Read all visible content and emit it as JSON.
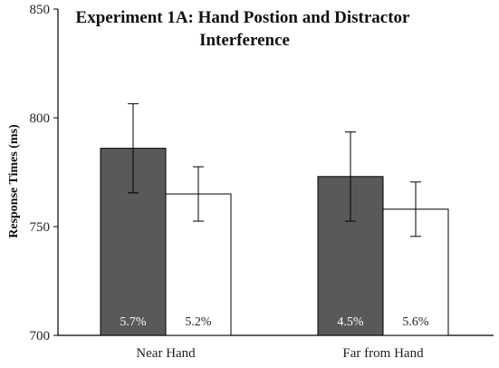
{
  "chart_data": {
    "type": "bar",
    "title_line1": "Experiment 1A: Hand Postion and Distractor",
    "title_line2": "Interference",
    "xlabel": "",
    "ylabel": "Response Times (ms)",
    "ylim": [
      700,
      850
    ],
    "yticks": [
      "700",
      "750",
      "800",
      "850"
    ],
    "categories": [
      "Near Hand",
      "Far from Hand"
    ],
    "grid": false,
    "series": [
      {
        "color": "#595959",
        "label_color": "#ffffff",
        "values": [
          786,
          773
        ],
        "errors": [
          20.5,
          20.5
        ],
        "bar_labels": [
          "5.7%",
          "4.5%"
        ]
      },
      {
        "color": "#ffffff",
        "label_color": "#222222",
        "values": [
          765,
          758
        ],
        "errors": [
          12.5,
          12.5
        ],
        "bar_labels": [
          "5.2%",
          "5.6%"
        ]
      }
    ]
  }
}
